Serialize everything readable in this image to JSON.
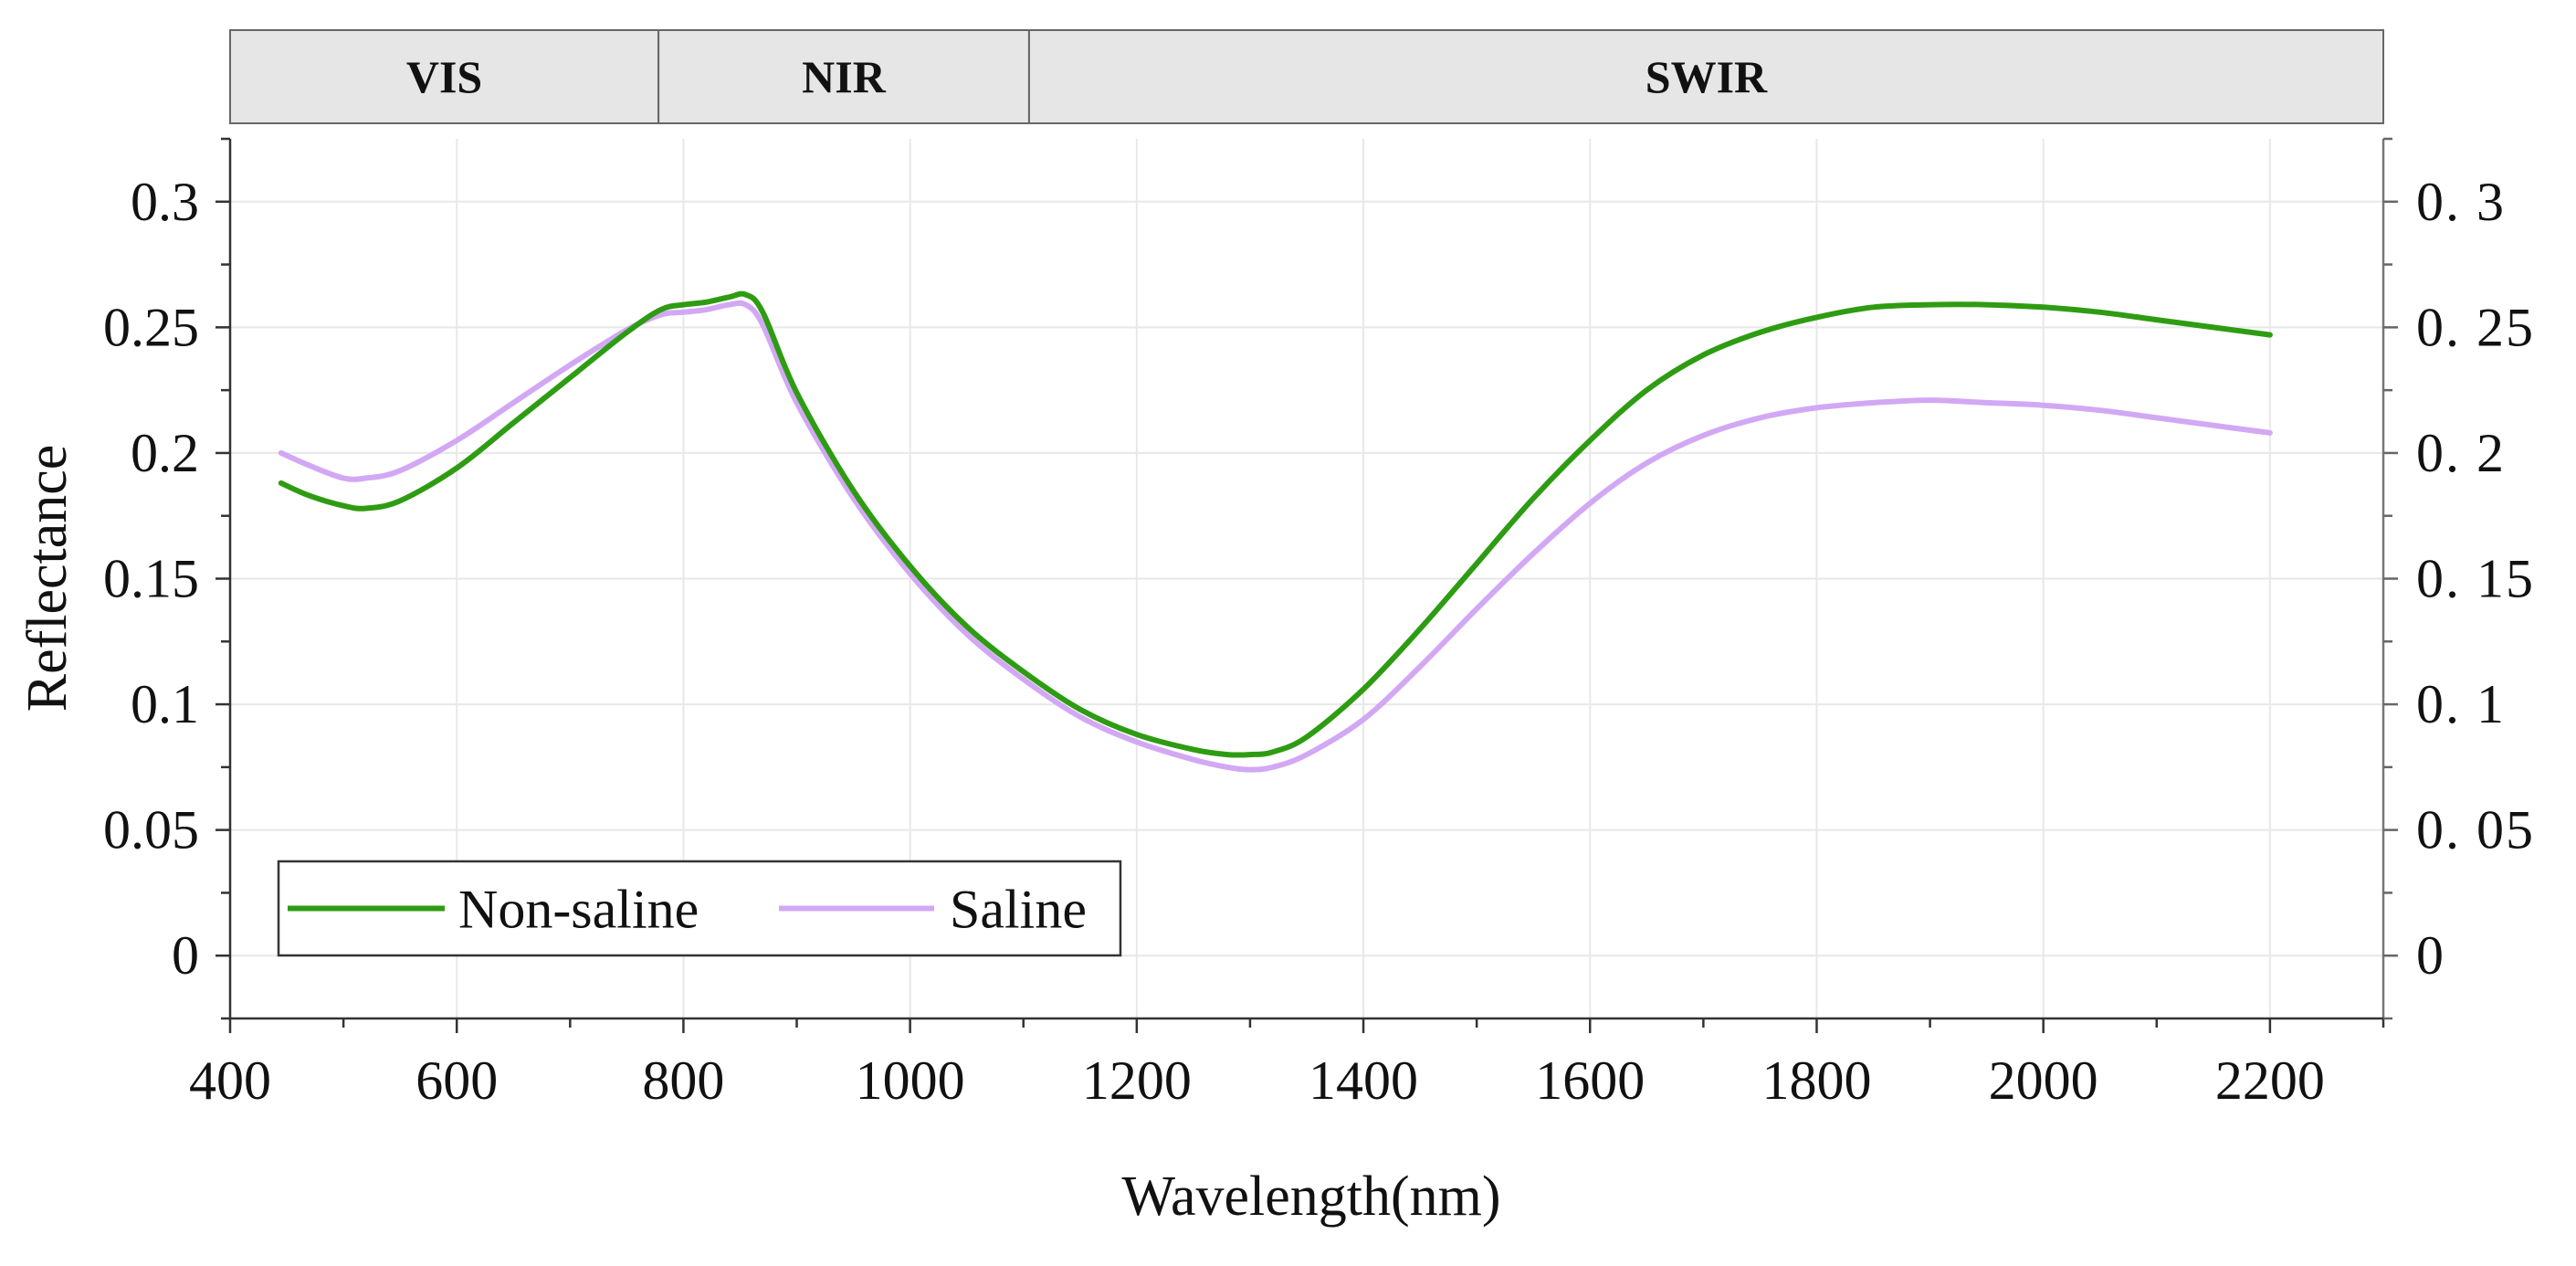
{
  "chart_data": {
    "type": "line",
    "title": "",
    "xlabel": "Wavelength(nm)",
    "ylabel": "Reflectance",
    "xlim": [
      400,
      2300
    ],
    "ylim": [
      -0.025,
      0.325
    ],
    "x_ticks": [
      400,
      600,
      800,
      1000,
      1200,
      1400,
      1600,
      1800,
      2000,
      2200
    ],
    "y_ticks": [
      0,
      0.05,
      0.1,
      0.15,
      0.2,
      0.25,
      0.3
    ],
    "x_tick_labels": [
      "400",
      "600",
      "800",
      "1000",
      "1200",
      "1400",
      "1600",
      "1800",
      "2000",
      "2200"
    ],
    "y_tick_labels": [
      "0",
      "0.05",
      "0.1",
      "0.15",
      "0.2",
      "0.25",
      "0.3"
    ],
    "y_tick_labels_right": [
      "0",
      "0. 05",
      "0. 1",
      "0. 15",
      "0. 2",
      "0. 25",
      "0. 3"
    ],
    "grid": true,
    "legend_position": "bottom-left",
    "bands": [
      {
        "label": "VIS",
        "start": 400,
        "end": 778
      },
      {
        "label": "NIR",
        "start": 778,
        "end": 1105
      },
      {
        "label": "SWIR",
        "start": 1105,
        "end": 2300
      }
    ],
    "series": [
      {
        "name": "Non-saline",
        "color": "#2e9c12",
        "x": [
          445,
          470,
          500,
          520,
          550,
          600,
          650,
          700,
          750,
          780,
          800,
          820,
          840,
          855,
          870,
          900,
          950,
          1000,
          1050,
          1100,
          1150,
          1200,
          1250,
          1280,
          1300,
          1320,
          1350,
          1400,
          1450,
          1500,
          1550,
          1600,
          1650,
          1700,
          1750,
          1800,
          1850,
          1900,
          1950,
          2000,
          2050,
          2100,
          2150,
          2200
        ],
        "y": [
          0.188,
          0.183,
          0.179,
          0.178,
          0.181,
          0.194,
          0.212,
          0.23,
          0.248,
          0.257,
          0.259,
          0.26,
          0.262,
          0.263,
          0.256,
          0.224,
          0.185,
          0.155,
          0.131,
          0.113,
          0.098,
          0.088,
          0.082,
          0.08,
          0.08,
          0.081,
          0.087,
          0.106,
          0.13,
          0.156,
          0.182,
          0.205,
          0.225,
          0.239,
          0.248,
          0.254,
          0.258,
          0.259,
          0.259,
          0.258,
          0.256,
          0.253,
          0.25,
          0.247
        ]
      },
      {
        "name": "Saline",
        "color": "#d2a8f5",
        "x": [
          445,
          470,
          500,
          520,
          550,
          600,
          650,
          700,
          750,
          780,
          800,
          820,
          840,
          855,
          870,
          900,
          950,
          1000,
          1050,
          1100,
          1150,
          1200,
          1250,
          1280,
          1300,
          1320,
          1350,
          1400,
          1450,
          1500,
          1550,
          1600,
          1650,
          1700,
          1750,
          1800,
          1850,
          1900,
          1950,
          2000,
          2050,
          2100,
          2150,
          2200
        ],
        "y": [
          0.2,
          0.195,
          0.19,
          0.19,
          0.193,
          0.205,
          0.22,
          0.235,
          0.249,
          0.255,
          0.256,
          0.257,
          0.259,
          0.259,
          0.251,
          0.22,
          0.182,
          0.152,
          0.128,
          0.11,
          0.095,
          0.085,
          0.078,
          0.075,
          0.074,
          0.075,
          0.08,
          0.094,
          0.115,
          0.138,
          0.16,
          0.18,
          0.196,
          0.207,
          0.214,
          0.218,
          0.22,
          0.221,
          0.22,
          0.219,
          0.217,
          0.214,
          0.211,
          0.208
        ]
      }
    ]
  }
}
